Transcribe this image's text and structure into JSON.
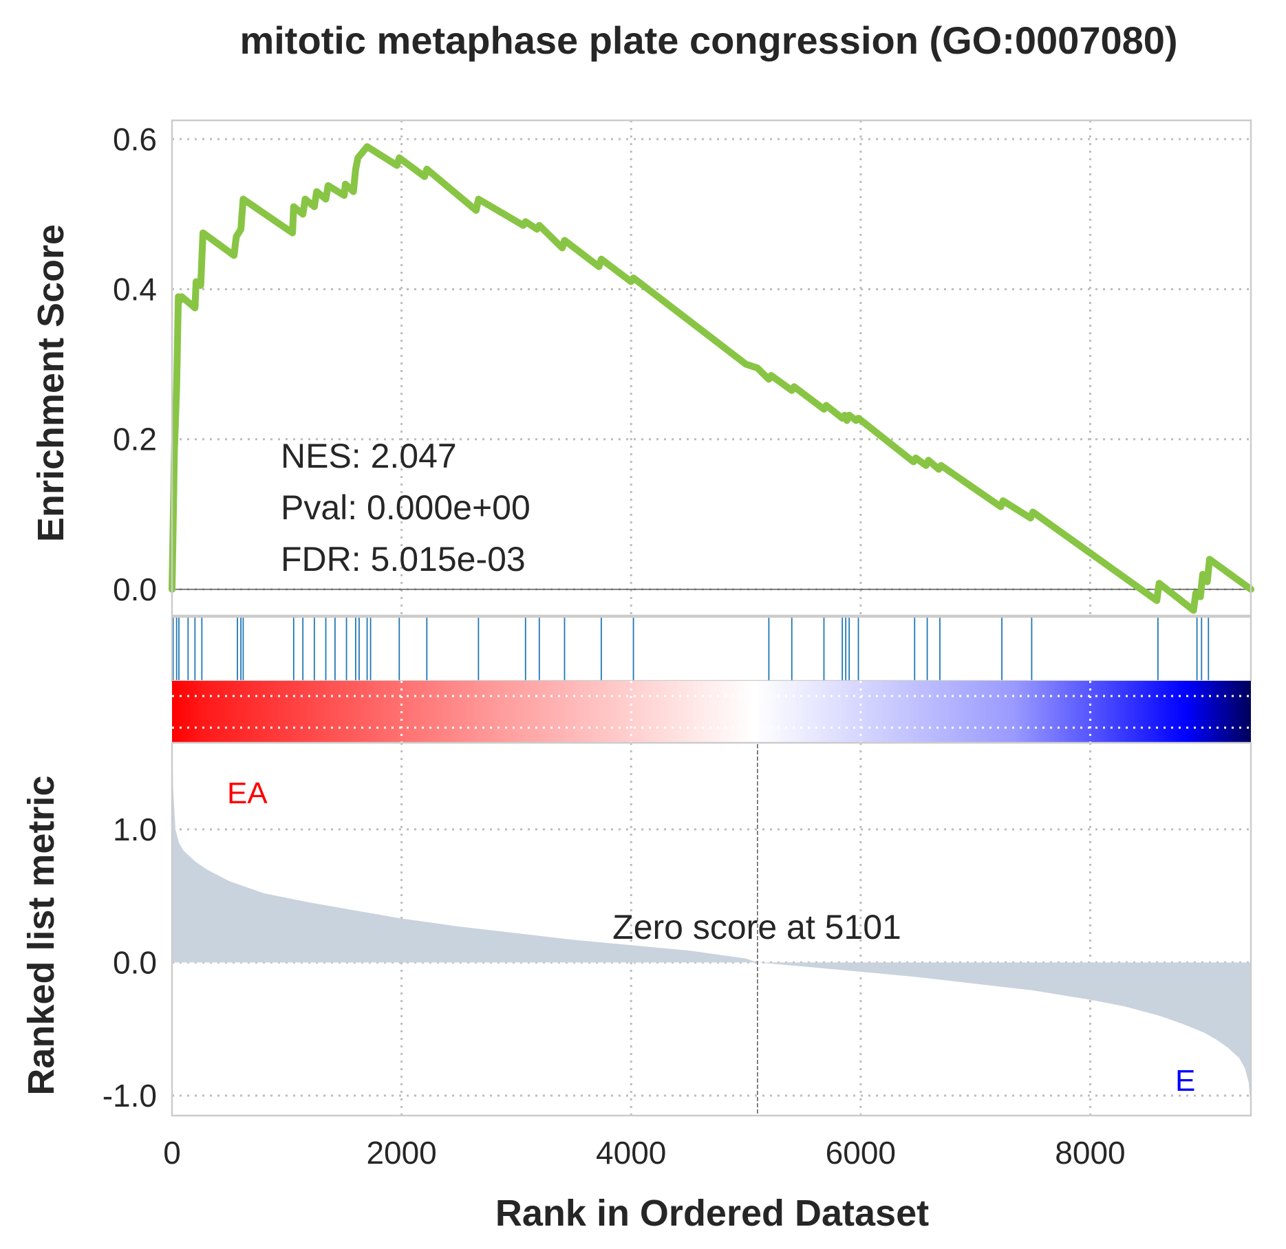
{
  "title": "mitotic metaphase plate congression (GO:0007080)",
  "colors": {
    "es_line": "#88c544",
    "hit_line": "#1f77b4",
    "metric_fill": "#c9d3dd",
    "pos_label": "#ff0000",
    "neg_label": "#0000ff"
  },
  "stats": {
    "nes": "NES: 2.047",
    "pval": "Pval: 0.000e+00",
    "fdr": "FDR: 5.015e-03"
  },
  "zero_score_text": "Zero score at 5101",
  "zero_score_rank": 5101,
  "pos_label": "EA",
  "neg_label": "E",
  "chart_data": [
    {
      "type": "line",
      "title": "mitotic metaphase plate congression (GO:0007080)",
      "ylabel": "Enrichment Score",
      "xlim": [
        0,
        9400
      ],
      "ylim": [
        -0.035,
        0.625
      ],
      "yticks": [
        "0.6",
        "0.4",
        "0.2",
        "0.0"
      ],
      "ytick_values": [
        0.6,
        0.4,
        0.2,
        0.0
      ],
      "grid": true,
      "series": [
        {
          "x": [
            0,
            15,
            20,
            40,
            55,
            70,
            85,
            200,
            210,
            250,
            270,
            540,
            560,
            600,
            620,
            1050,
            1060,
            1140,
            1160,
            1240,
            1260,
            1340,
            1360,
            1500,
            1510,
            1580,
            1600,
            1620,
            1700,
            1960,
            1980,
            2200,
            2220,
            2650,
            2670,
            3060,
            3080,
            3180,
            3200,
            3400,
            3420,
            3720,
            3740,
            4000,
            4020,
            5000,
            5100,
            5200,
            5220,
            5400,
            5420,
            5680,
            5700,
            5840,
            5860,
            5880,
            5900,
            5960,
            5980,
            6460,
            6480,
            6570,
            6590,
            6680,
            6700,
            7220,
            7240,
            7480,
            7500,
            8580,
            8600,
            8900,
            8920,
            8960,
            8980,
            9020,
            9040,
            9400
          ],
          "y": [
            0,
            0.13,
            0.18,
            0.27,
            0.39,
            0.385,
            0.39,
            0.375,
            0.41,
            0.405,
            0.475,
            0.445,
            0.47,
            0.48,
            0.52,
            0.475,
            0.51,
            0.5,
            0.52,
            0.51,
            0.53,
            0.52,
            0.538,
            0.525,
            0.54,
            0.53,
            0.56,
            0.575,
            0.59,
            0.565,
            0.575,
            0.55,
            0.56,
            0.505,
            0.52,
            0.485,
            0.49,
            0.48,
            0.485,
            0.455,
            0.465,
            0.43,
            0.44,
            0.41,
            0.415,
            0.3,
            0.295,
            0.28,
            0.285,
            0.265,
            0.27,
            0.24,
            0.245,
            0.228,
            0.232,
            0.225,
            0.232,
            0.225,
            0.228,
            0.17,
            0.175,
            0.165,
            0.172,
            0.16,
            0.165,
            0.11,
            0.118,
            0.095,
            0.103,
            -0.015,
            0.008,
            -0.028,
            -0.005,
            -0.01,
            0.02,
            0.01,
            0.04,
            0.0
          ]
        }
      ]
    },
    {
      "type": "hits",
      "description_none": "",
      "x": [
        10,
        40,
        60,
        140,
        200,
        260,
        570,
        600,
        620,
        1060,
        1140,
        1240,
        1340,
        1420,
        1520,
        1600,
        1630,
        1700,
        1730,
        1980,
        2220,
        2670,
        3080,
        3200,
        3420,
        3740,
        4020,
        5200,
        5400,
        5680,
        5840,
        5870,
        5900,
        5980,
        6470,
        6580,
        6690,
        7230,
        7490,
        8590,
        8930,
        8970,
        9030
      ]
    },
    {
      "type": "area",
      "ylabel": "Ranked list metric",
      "xlabel": "Rank in Ordered Dataset",
      "xlim": [
        0,
        9400
      ],
      "ylim": [
        -1.15,
        1.65
      ],
      "xticks": [
        "0",
        "2000",
        "4000",
        "6000",
        "8000"
      ],
      "xtick_values": [
        0,
        2000,
        4000,
        6000,
        8000
      ],
      "yticks": [
        "1.0",
        "0.0",
        "-1.0"
      ],
      "ytick_values": [
        1.0,
        0.0,
        -1.0
      ],
      "grid": true,
      "series": [
        {
          "x": [
            0,
            10,
            30,
            60,
            100,
            200,
            300,
            500,
            800,
            1200,
            1600,
            2000,
            2500,
            3000,
            3500,
            4000,
            4500,
            5000,
            5101,
            5500,
            6000,
            6500,
            7000,
            7500,
            8000,
            8300,
            8600,
            8800,
            9000,
            9100,
            9200,
            9300,
            9350,
            9380,
            9400
          ],
          "y": [
            1.65,
            1.3,
            1.0,
            0.9,
            0.84,
            0.76,
            0.7,
            0.61,
            0.52,
            0.45,
            0.39,
            0.33,
            0.27,
            0.22,
            0.17,
            0.13,
            0.09,
            0.03,
            0.0,
            -0.03,
            -0.07,
            -0.11,
            -0.16,
            -0.21,
            -0.28,
            -0.33,
            -0.4,
            -0.46,
            -0.53,
            -0.58,
            -0.64,
            -0.72,
            -0.8,
            -0.9,
            -1.1
          ]
        }
      ]
    }
  ]
}
